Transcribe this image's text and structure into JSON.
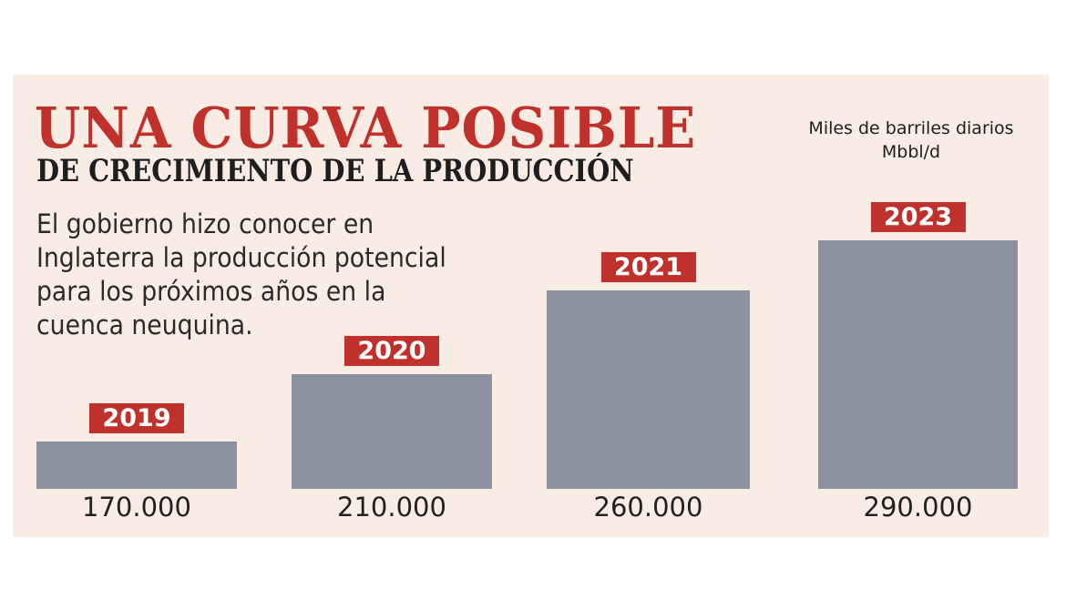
{
  "chart_data": {
    "type": "bar",
    "title": "UNA CURVA POSIBLE",
    "subtitle": "DE CRECIMIENTO DE LA PRODUCCIÓN",
    "description": "El gobierno hizo conocer en Inglaterra la producción potencial para los próximos años en la cuenca neuquina.",
    "unit_label": [
      "Miles de barriles diarios",
      "Mbbl/d"
    ],
    "categories": [
      "2019",
      "2020",
      "2021",
      "2023"
    ],
    "values": [
      170000,
      210000,
      260000,
      290000
    ],
    "value_labels": [
      "170.000",
      "210.000",
      "260.000",
      "290.000"
    ],
    "xlabel": "",
    "ylabel": "",
    "ylim": [
      141700,
      290000
    ],
    "grid": false,
    "colors": {
      "bar": "#8b919e",
      "label_bg": "#c0312b",
      "title": "#c0312b",
      "background": "#f9ece4"
    }
  }
}
